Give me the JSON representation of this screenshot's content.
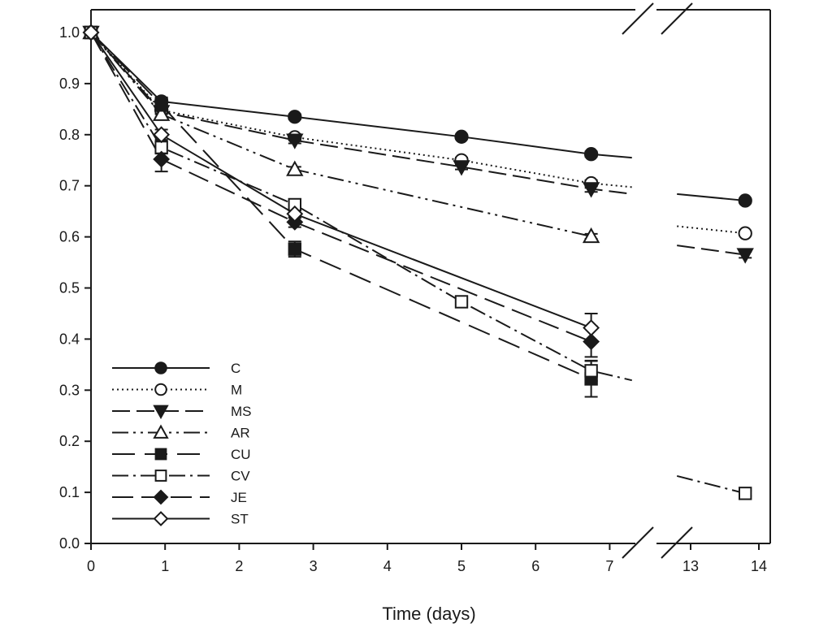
{
  "chart_data": {
    "type": "line",
    "title": "",
    "xlabel": "Time (days)",
    "ylabel": "",
    "ylim": [
      0,
      1.0
    ],
    "y_ticks": [
      0.0,
      0.1,
      0.2,
      0.3,
      0.4,
      0.5,
      0.6,
      0.7,
      0.8,
      0.9,
      1.0
    ],
    "y_tick_labels": [
      "0.0",
      "0.1",
      "0.2",
      "0.3",
      "0.4",
      "0.5",
      "0.6",
      "0.7",
      "0.8",
      "0.9",
      "1.0"
    ],
    "x_axis_break": {
      "from": 7.3,
      "to": 12.8
    },
    "x_ticks": [
      0,
      1,
      2,
      3,
      4,
      5,
      6,
      7,
      13,
      14
    ],
    "x_tick_labels": [
      "0",
      "1",
      "2",
      "3",
      "4",
      "5",
      "6",
      "7",
      "13",
      "14"
    ],
    "legend_position": "bottom-left",
    "grid": false,
    "series": [
      {
        "name": "C",
        "marker": "circle",
        "filled": true,
        "dash": "",
        "points": [
          [
            0,
            1.0
          ],
          [
            0.95,
            0.865
          ],
          [
            2.75,
            0.835
          ],
          [
            5.0,
            0.796
          ],
          [
            6.75,
            0.762
          ],
          [
            13.8,
            0.671
          ]
        ],
        "errors": [
          0,
          0.006,
          0.005,
          0.004,
          0.005,
          0.004
        ]
      },
      {
        "name": "M",
        "marker": "circle",
        "filled": false,
        "dash": "2,4",
        "points": [
          [
            0,
            1.0
          ],
          [
            0.95,
            0.848
          ],
          [
            2.75,
            0.795
          ],
          [
            5.0,
            0.75
          ],
          [
            6.75,
            0.705
          ],
          [
            13.8,
            0.607
          ]
        ],
        "errors": [
          0,
          0.005,
          0.006,
          0.005,
          0.006,
          0.004
        ]
      },
      {
        "name": "MS",
        "marker": "triangle-down",
        "filled": true,
        "dash": "22,8",
        "points": [
          [
            0,
            1.0
          ],
          [
            0.95,
            0.845
          ],
          [
            2.75,
            0.789
          ],
          [
            5.0,
            0.737
          ],
          [
            6.75,
            0.694
          ],
          [
            13.8,
            0.565
          ]
        ],
        "errors": [
          0,
          0.005,
          0.006,
          0.005,
          0.006,
          0.006
        ]
      },
      {
        "name": "AR",
        "marker": "triangle-up",
        "filled": false,
        "dash": "20,6,3,6,3,6",
        "points": [
          [
            0,
            1.0
          ],
          [
            0.95,
            0.84
          ],
          [
            2.75,
            0.732
          ],
          [
            6.75,
            0.601
          ]
        ],
        "errors": [
          0,
          0.006,
          0.005,
          0.005
        ]
      },
      {
        "name": "CU",
        "marker": "square",
        "filled": true,
        "dash": "28,12",
        "points": [
          [
            0,
            1.0
          ],
          [
            0.95,
            0.858
          ],
          [
            2.75,
            0.576
          ],
          [
            6.75,
            0.322
          ]
        ],
        "errors": [
          0,
          0.015,
          0.015,
          0.035
        ]
      },
      {
        "name": "CV",
        "marker": "square",
        "filled": false,
        "dash": "20,6,3,6",
        "points": [
          [
            0,
            1.0
          ],
          [
            0.95,
            0.775
          ],
          [
            2.75,
            0.663
          ],
          [
            5.0,
            0.473
          ],
          [
            6.75,
            0.338
          ],
          [
            13.8,
            0.098
          ]
        ],
        "errors": [
          0,
          0.012,
          0.008,
          0.01,
          0.02,
          0.005
        ]
      },
      {
        "name": "JE",
        "marker": "diamond",
        "filled": true,
        "dash": "26,10",
        "points": [
          [
            0,
            1.0
          ],
          [
            0.95,
            0.752
          ],
          [
            2.75,
            0.629
          ],
          [
            6.75,
            0.395
          ]
        ],
        "errors": [
          0,
          0.024,
          0.01,
          0.03
        ]
      },
      {
        "name": "ST",
        "marker": "diamond",
        "filled": false,
        "dash": "",
        "points": [
          [
            0,
            1.0
          ],
          [
            0.95,
            0.8
          ],
          [
            2.75,
            0.645
          ],
          [
            6.75,
            0.422
          ]
        ],
        "errors": [
          0,
          0.01,
          0.008,
          0.028
        ]
      }
    ]
  }
}
